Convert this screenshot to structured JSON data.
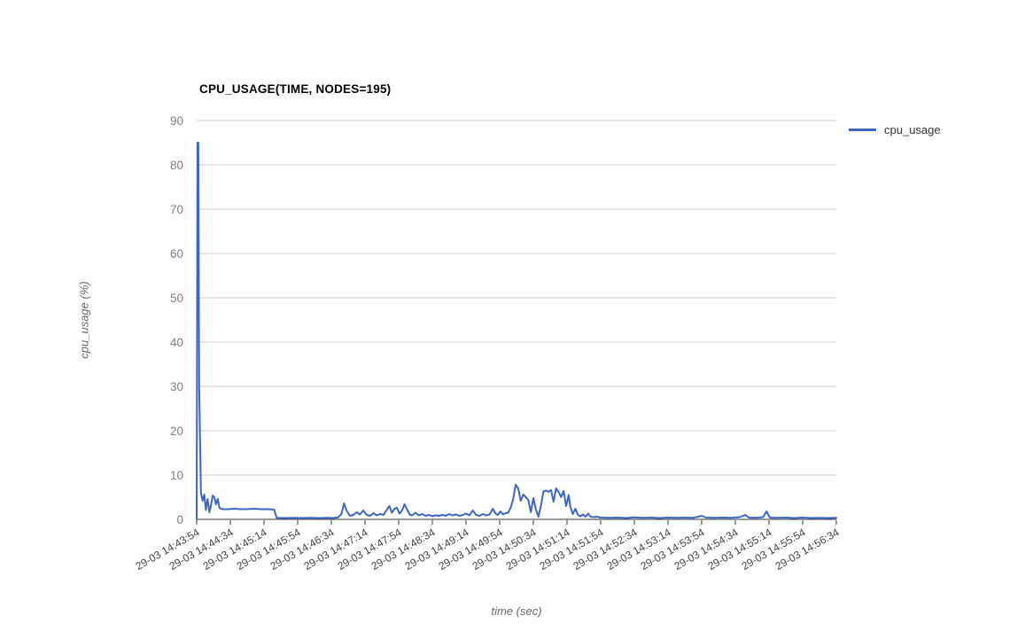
{
  "chart_data": {
    "type": "line",
    "title": "CPU_USAGE(TIME, NODES=195)",
    "xlabel": "time (sec)",
    "ylabel": "cpu_usage (%)",
    "ylim": [
      0,
      90
    ],
    "xmax_seconds": 760,
    "grid": "horizontal-only",
    "legend_position": "right-top",
    "yticks": [
      "0",
      "10",
      "20",
      "30",
      "40",
      "50",
      "60",
      "70",
      "80",
      "90"
    ],
    "xticks": [
      "29-03 14:43:54",
      "29-03 14:44:34",
      "29-03 14:45:14",
      "29-03 14:45:54",
      "29-03 14:46:34",
      "29-03 14:47:14",
      "29-03 14:47:54",
      "29-03 14:48:34",
      "29-03 14:49:14",
      "29-03 14:49:54",
      "29-03 14:50:34",
      "29-03 14:51:14",
      "29-03 14:51:54",
      "29-03 14:52:34",
      "29-03 14:53:14",
      "29-03 14:53:54",
      "29-03 14:54:34",
      "29-03 14:55:14",
      "29-03 14:55:54",
      "29-03 14:56:34"
    ],
    "colors": {
      "series": "#3b66c8",
      "grid": "#cccccc",
      "axis": "#333333",
      "xtick_label": "#404040",
      "ytick_label": "#808080",
      "axis_title": "#666666",
      "legend_text": "#333333",
      "title": "#000000"
    },
    "series": [
      {
        "name": "cpu_usage",
        "points": [
          [
            0,
            0
          ],
          [
            1,
            85
          ],
          [
            2,
            85
          ],
          [
            3,
            30
          ],
          [
            5,
            6
          ],
          [
            7,
            4.2
          ],
          [
            9,
            5.6
          ],
          [
            11,
            2.1
          ],
          [
            13,
            4.6
          ],
          [
            15,
            1.6
          ],
          [
            17,
            3.2
          ],
          [
            19,
            5.4
          ],
          [
            21,
            5.0
          ],
          [
            23,
            3.4
          ],
          [
            25,
            4.6
          ],
          [
            27,
            2.6
          ],
          [
            29,
            2.4
          ],
          [
            32,
            2.3
          ],
          [
            38,
            2.3
          ],
          [
            45,
            2.4
          ],
          [
            52,
            2.3
          ],
          [
            60,
            2.3
          ],
          [
            68,
            2.4
          ],
          [
            76,
            2.3
          ],
          [
            84,
            2.3
          ],
          [
            92,
            2.2
          ],
          [
            95,
            0.35
          ],
          [
            105,
            0.3
          ],
          [
            115,
            0.35
          ],
          [
            125,
            0.3
          ],
          [
            135,
            0.35
          ],
          [
            145,
            0.3
          ],
          [
            155,
            0.35
          ],
          [
            162,
            0.3
          ],
          [
            168,
            0.45
          ],
          [
            172,
            1.2
          ],
          [
            175,
            3.6
          ],
          [
            178,
            2.0
          ],
          [
            182,
            0.8
          ],
          [
            186,
            1.0
          ],
          [
            190,
            1.6
          ],
          [
            194,
            1.1
          ],
          [
            198,
            2.0
          ],
          [
            202,
            1.0
          ],
          [
            206,
            0.8
          ],
          [
            210,
            1.4
          ],
          [
            214,
            0.9
          ],
          [
            218,
            1.2
          ],
          [
            222,
            1.0
          ],
          [
            226,
            2.2
          ],
          [
            229,
            3.0
          ],
          [
            232,
            1.5
          ],
          [
            235,
            2.4
          ],
          [
            238,
            2.6
          ],
          [
            241,
            1.3
          ],
          [
            244,
            2.0
          ],
          [
            247,
            3.4
          ],
          [
            250,
            2.2
          ],
          [
            253,
            1.1
          ],
          [
            256,
            0.9
          ],
          [
            260,
            1.5
          ],
          [
            264,
            0.9
          ],
          [
            268,
            1.2
          ],
          [
            272,
            0.8
          ],
          [
            276,
            1.0
          ],
          [
            280,
            0.7
          ],
          [
            284,
            0.9
          ],
          [
            288,
            0.8
          ],
          [
            292,
            1.0
          ],
          [
            296,
            0.8
          ],
          [
            300,
            1.2
          ],
          [
            304,
            0.9
          ],
          [
            308,
            1.1
          ],
          [
            312,
            0.8
          ],
          [
            316,
            1.0
          ],
          [
            320,
            1.3
          ],
          [
            324,
            0.9
          ],
          [
            328,
            2.0
          ],
          [
            332,
            1.0
          ],
          [
            336,
            0.8
          ],
          [
            340,
            1.2
          ],
          [
            344,
            0.9
          ],
          [
            348,
            1.1
          ],
          [
            352,
            2.4
          ],
          [
            355,
            1.3
          ],
          [
            358,
            1.0
          ],
          [
            361,
            1.8
          ],
          [
            364,
            1.1
          ],
          [
            367,
            1.4
          ],
          [
            370,
            1.5
          ],
          [
            373,
            2.6
          ],
          [
            376,
            4.5
          ],
          [
            379,
            7.8
          ],
          [
            382,
            7.0
          ],
          [
            385,
            4.2
          ],
          [
            388,
            5.6
          ],
          [
            391,
            5.0
          ],
          [
            394,
            4.4
          ],
          [
            397,
            1.6
          ],
          [
            400,
            4.8
          ],
          [
            403,
            2.2
          ],
          [
            406,
            0.6
          ],
          [
            409,
            3.0
          ],
          [
            412,
            6.3
          ],
          [
            415,
            6.5
          ],
          [
            418,
            6.2
          ],
          [
            421,
            6.6
          ],
          [
            424,
            4.0
          ],
          [
            427,
            7.0
          ],
          [
            430,
            6.2
          ],
          [
            433,
            5.0
          ],
          [
            436,
            6.4
          ],
          [
            439,
            3.0
          ],
          [
            442,
            5.5
          ],
          [
            444,
            2.8
          ],
          [
            447,
            1.2
          ],
          [
            450,
            2.4
          ],
          [
            453,
            1.0
          ],
          [
            456,
            0.7
          ],
          [
            459,
            1.1
          ],
          [
            462,
            0.6
          ],
          [
            465,
            1.3
          ],
          [
            468,
            0.6
          ],
          [
            472,
            0.5
          ],
          [
            476,
            0.6
          ],
          [
            480,
            0.4
          ],
          [
            490,
            0.35
          ],
          [
            500,
            0.4
          ],
          [
            510,
            0.3
          ],
          [
            520,
            0.45
          ],
          [
            530,
            0.35
          ],
          [
            540,
            0.4
          ],
          [
            550,
            0.3
          ],
          [
            560,
            0.4
          ],
          [
            570,
            0.35
          ],
          [
            580,
            0.4
          ],
          [
            590,
            0.35
          ],
          [
            600,
            0.8
          ],
          [
            605,
            0.4
          ],
          [
            615,
            0.35
          ],
          [
            625,
            0.4
          ],
          [
            635,
            0.35
          ],
          [
            645,
            0.5
          ],
          [
            652,
            1.0
          ],
          [
            656,
            0.4
          ],
          [
            665,
            0.35
          ],
          [
            673,
            0.5
          ],
          [
            677,
            1.8
          ],
          [
            681,
            0.4
          ],
          [
            690,
            0.35
          ],
          [
            700,
            0.4
          ],
          [
            710,
            0.3
          ],
          [
            720,
            0.4
          ],
          [
            730,
            0.3
          ],
          [
            740,
            0.35
          ],
          [
            750,
            0.3
          ],
          [
            760,
            0.35
          ]
        ]
      }
    ],
    "legend": {
      "label": "cpu_usage"
    }
  }
}
